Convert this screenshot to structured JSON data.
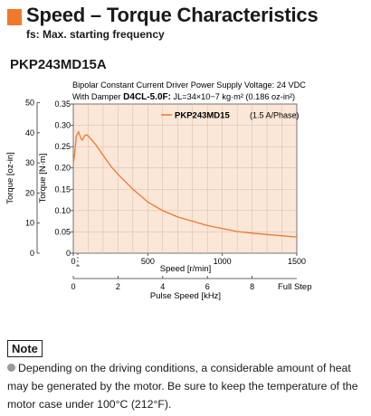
{
  "header": {
    "title": "Speed – Torque Characteristics",
    "subtitle": "fs: Max. starting frequency",
    "model": "PKP243MD15A"
  },
  "conditions": {
    "line1": "Bipolar Constant Current Driver  Power Supply Voltage: 24 VDC",
    "line2": "With Damper D4CL-5.0F: JL=34×10−7 kg·m² (0.186 oz-in²)"
  },
  "colors": {
    "accent": "#f07a2b",
    "plot_fill": "#fbe7d8",
    "curve": "#ee7a33"
  },
  "chart_data": {
    "type": "line",
    "title": "",
    "xlabel": "Speed [r/min]",
    "ylabel": "Torque [N·m]",
    "xlim": [
      0,
      1500
    ],
    "ylim": [
      0,
      0.35
    ],
    "x_ticks": [
      0,
      500,
      1000,
      1500
    ],
    "y_ticks": [
      0,
      0.05,
      0.1,
      0.15,
      0.2,
      0.25,
      0.3,
      0.35
    ],
    "y_tick_labels": [
      "0",
      "0.05",
      "0.10",
      "0.15",
      "0.20",
      "0.25",
      "0.30",
      "0.35"
    ],
    "secondary_y": {
      "label": "Torque [oz-in]",
      "range": [
        0,
        49.56
      ],
      "ticks": [
        0,
        10,
        20,
        30,
        40,
        50
      ]
    },
    "secondary_x": {
      "label": "Pulse Speed [kHz]",
      "ticks": [
        0,
        2,
        4,
        6,
        8
      ],
      "suffix_label": "Full Step"
    },
    "grid": true,
    "legend_position": "top-right",
    "series": [
      {
        "name": "PKP243MD15",
        "annotation": "(1.5 A/Phase)",
        "x": [
          0,
          10,
          20,
          35,
          50,
          60,
          75,
          90,
          100,
          150,
          200,
          250,
          300,
          400,
          500,
          600,
          700,
          800,
          900,
          1000,
          1100,
          1200,
          1300,
          1400,
          1500
        ],
        "y": [
          0.21,
          0.235,
          0.275,
          0.285,
          0.27,
          0.265,
          0.275,
          0.278,
          0.275,
          0.255,
          0.23,
          0.205,
          0.185,
          0.15,
          0.12,
          0.1,
          0.085,
          0.075,
          0.065,
          0.058,
          0.051,
          0.047,
          0.044,
          0.041,
          0.038
        ]
      }
    ],
    "fs_marker_x": 30
  },
  "note": {
    "label": "Note",
    "text": "Depending on the driving conditions, a considerable amount of heat may be generated by the motor. Be sure to keep the temperature of the motor case under 100°C (212°F)."
  }
}
